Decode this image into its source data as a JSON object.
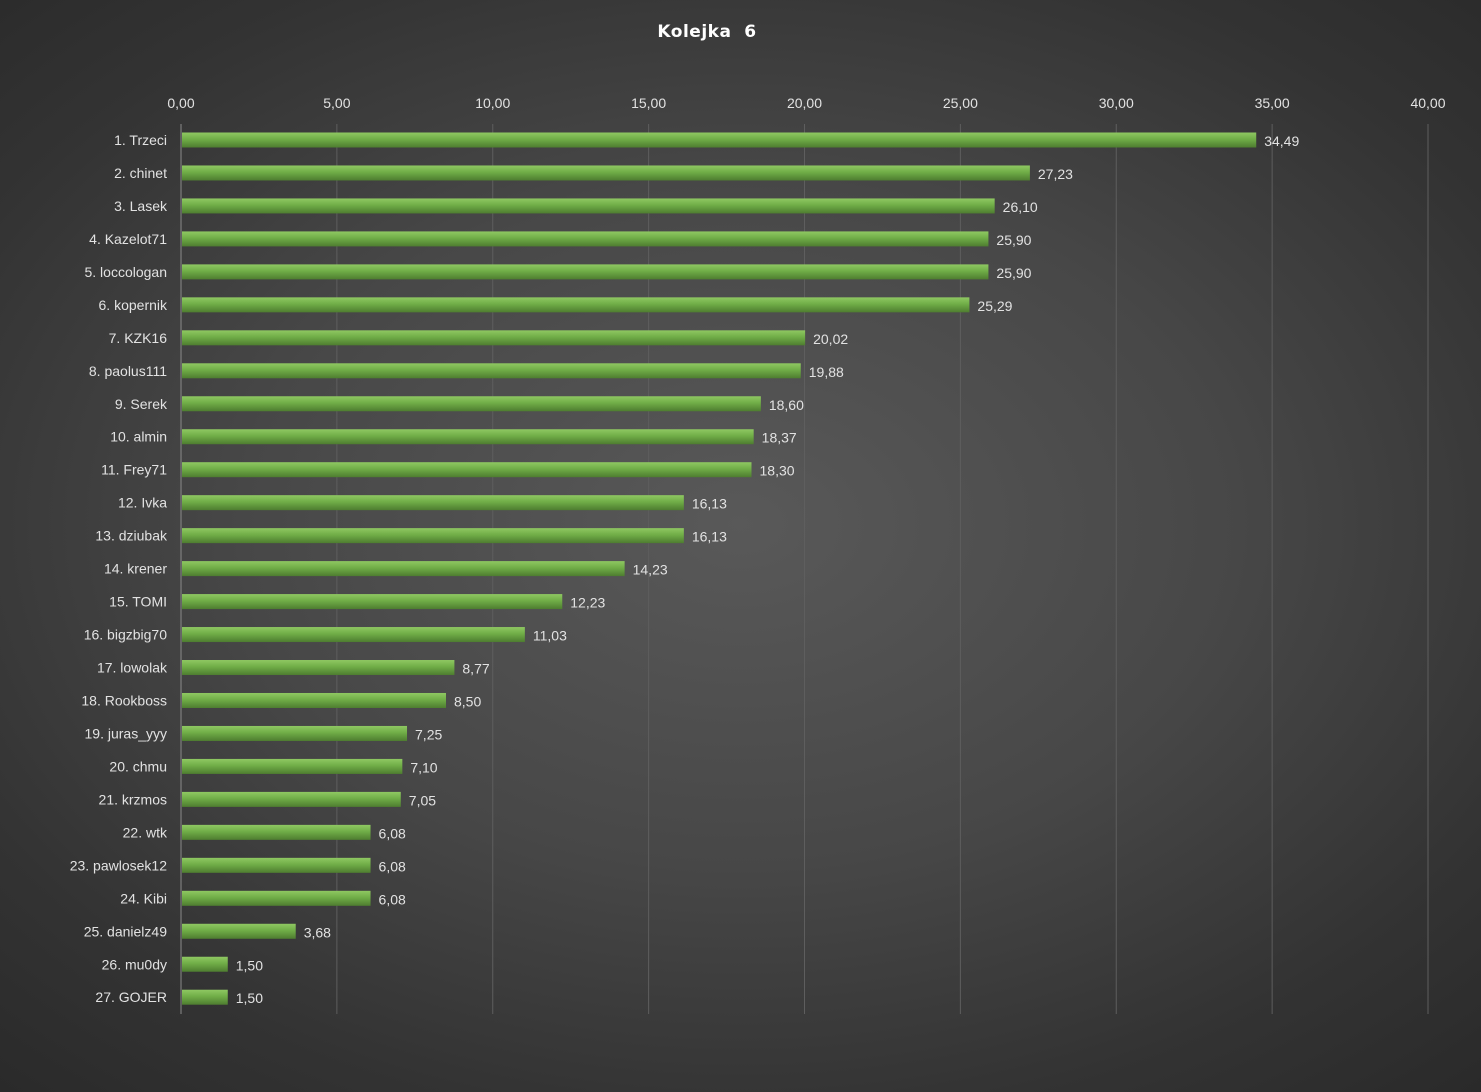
{
  "chart_data": {
    "type": "bar",
    "orientation": "horizontal",
    "title": "Kolejka  6",
    "xlabel": "",
    "ylabel": "",
    "xlim": [
      0,
      40
    ],
    "tick_step": 5,
    "tick_labels": [
      "0,00",
      "5,00",
      "10,00",
      "15,00",
      "20,00",
      "25,00",
      "30,00",
      "35,00",
      "40,00"
    ],
    "x_axis_position": "top",
    "grid": true,
    "legend": "none",
    "colors": {
      "bar": "#70ad47",
      "bar_highlight": "#8fc862",
      "bar_shadow": "#4e7d30",
      "text": "#e2e2e2",
      "title": "#ffffff",
      "grid": "#5e5e5e"
    },
    "categories": [
      "1. Trzeci",
      "2. chinet",
      "3. Lasek",
      "4. Kazelot71",
      "5. loccologan",
      "6. kopernik",
      "7. KZK16",
      "8. paolus111",
      "9. Serek",
      "10. almin",
      "11. Frey71",
      "12. Ivka",
      "13. dziubak",
      "14. krener",
      "15. TOMI",
      "16. bigzbig70",
      "17. lowolak",
      "18. Rookboss",
      "19. juras_yyy",
      "20. chmu",
      "21. krzmos",
      "22. wtk",
      "23. pawlosek12",
      "24. Kibi",
      "25. danielz49",
      "26. mu0dy",
      "27. GOJER"
    ],
    "values": [
      34.49,
      27.23,
      26.1,
      25.9,
      25.9,
      25.29,
      20.02,
      19.88,
      18.6,
      18.37,
      18.3,
      16.13,
      16.13,
      14.23,
      12.23,
      11.03,
      8.77,
      8.5,
      7.25,
      7.1,
      7.05,
      6.08,
      6.08,
      6.08,
      3.68,
      1.5,
      1.5
    ],
    "data_labels": [
      "34,49",
      "27,23",
      "26,10",
      "25,90",
      "25,90",
      "25,29",
      "20,02",
      "19,88",
      "18,60",
      "18,37",
      "18,30",
      "16,13",
      "16,13",
      "14,23",
      "12,23",
      "11,03",
      "8,77",
      "8,50",
      "7,25",
      "7,10",
      "7,05",
      "6,08",
      "6,08",
      "6,08",
      "3,68",
      "1,50",
      "1,50"
    ]
  }
}
